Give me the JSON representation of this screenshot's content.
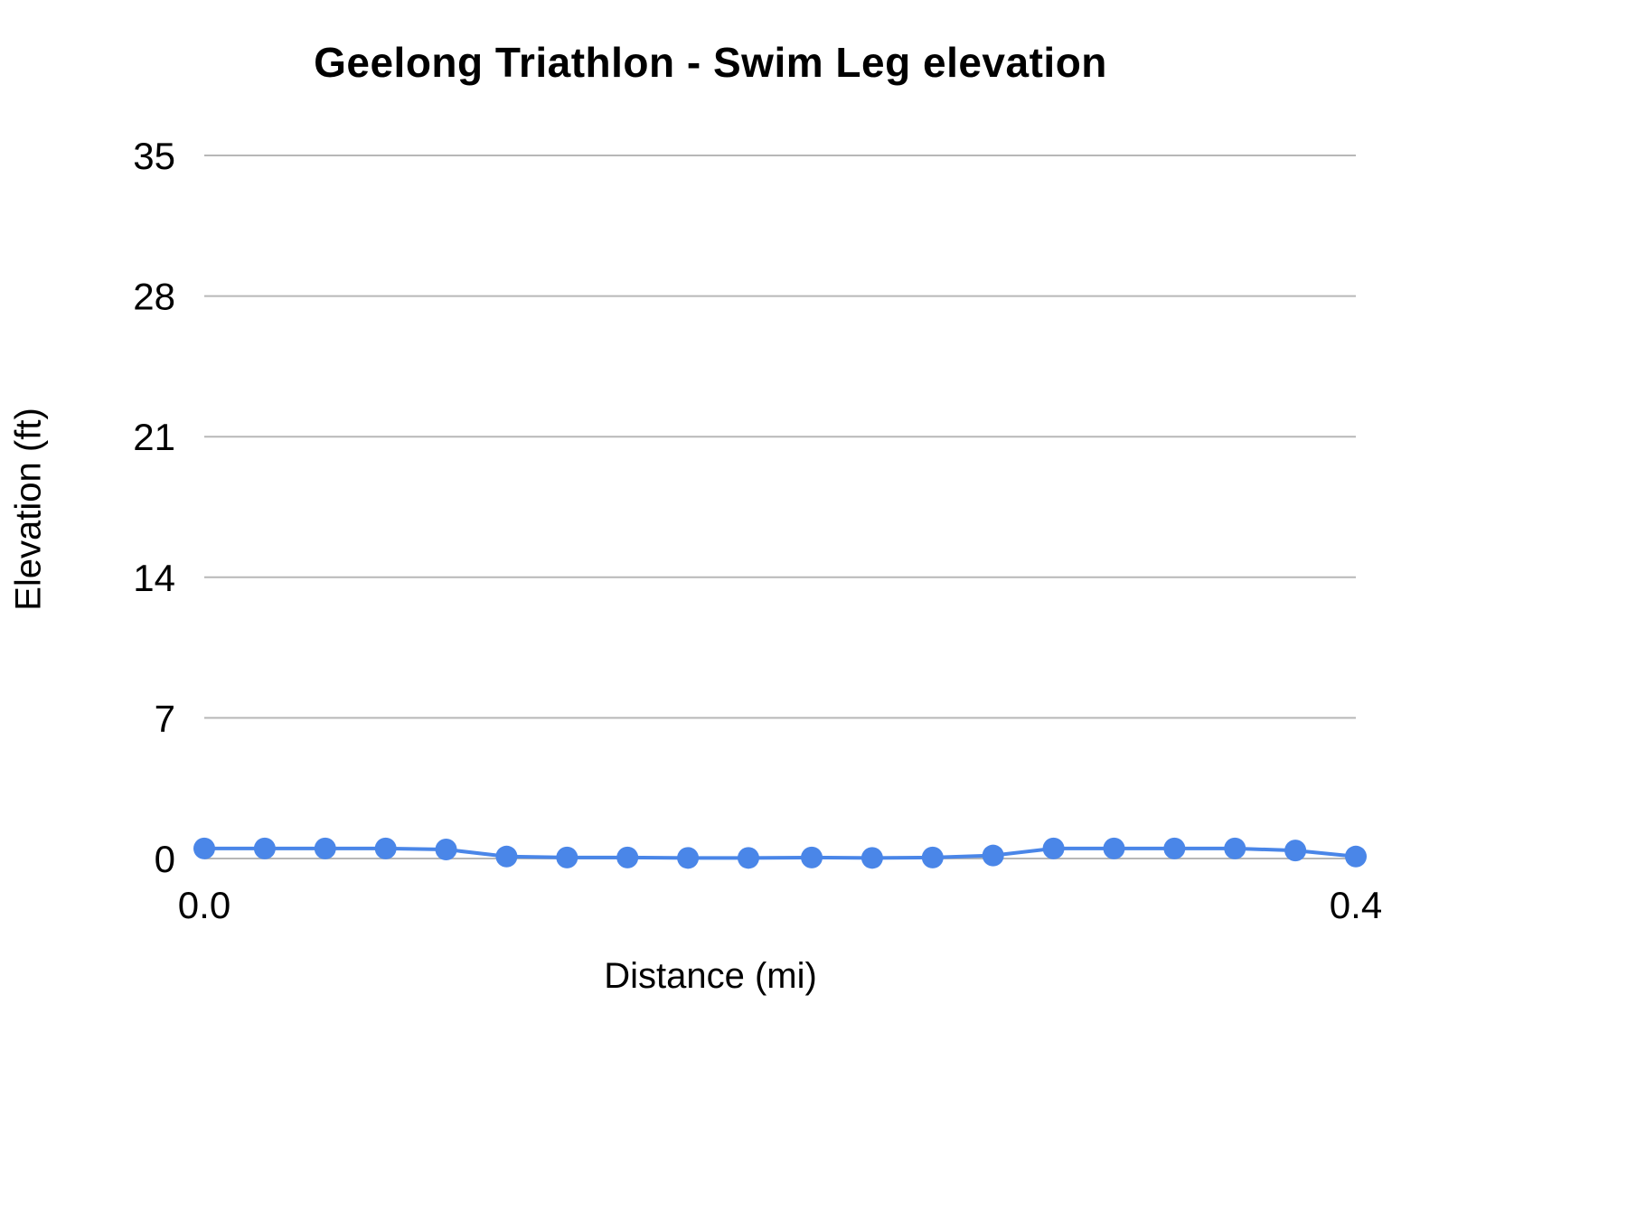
{
  "chart_data": {
    "type": "line",
    "title": "Geelong Triathlon - Swim Leg elevation",
    "xlabel": "Distance (mi)",
    "ylabel": "Elevation (ft)",
    "x": [
      0.0,
      0.021,
      0.042,
      0.063,
      0.084,
      0.105,
      0.126,
      0.147,
      0.168,
      0.189,
      0.211,
      0.232,
      0.253,
      0.274,
      0.295,
      0.316,
      0.337,
      0.358,
      0.379,
      0.4
    ],
    "values": [
      0.5,
      0.5,
      0.5,
      0.5,
      0.45,
      0.1,
      0.05,
      0.05,
      0.03,
      0.03,
      0.05,
      0.03,
      0.05,
      0.15,
      0.5,
      0.5,
      0.5,
      0.5,
      0.4,
      0.1
    ],
    "series_name": "Elevation",
    "xlim": [
      0.0,
      0.4
    ],
    "ylim": [
      0,
      35
    ],
    "yticks": [
      0,
      7,
      14,
      21,
      28,
      35
    ],
    "xticks": [
      0.0,
      0.4
    ],
    "xtick_labels": [
      "0.0",
      "0.4"
    ],
    "grid": true,
    "legend": "none",
    "line_color": "#4a86e8",
    "marker_color": "#4a86e8",
    "grid_color": "#b7b7b7",
    "tick_font_size": 42,
    "marker_radius": 12,
    "line_width": 4
  }
}
